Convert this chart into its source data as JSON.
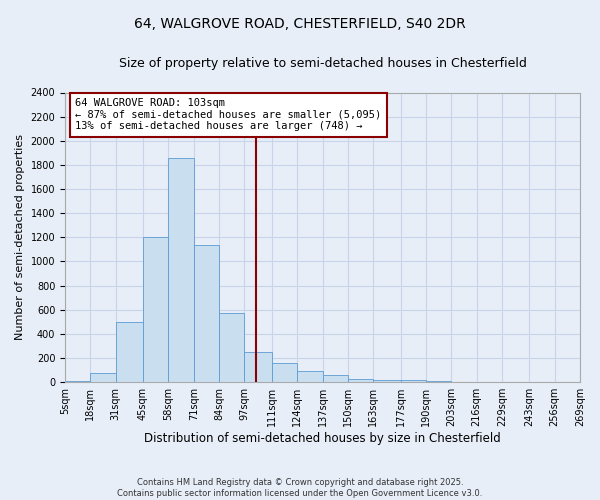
{
  "title_line1": "64, WALGROVE ROAD, CHESTERFIELD, S40 2DR",
  "title_line2": "Size of property relative to semi-detached houses in Chesterfield",
  "xlabel": "Distribution of semi-detached houses by size in Chesterfield",
  "ylabel": "Number of semi-detached properties",
  "footer_line1": "Contains HM Land Registry data © Crown copyright and database right 2025.",
  "footer_line2": "Contains public sector information licensed under the Open Government Licence v3.0.",
  "annotation_line1": "64 WALGROVE ROAD: 103sqm",
  "annotation_line2": "← 87% of semi-detached houses are smaller (5,095)",
  "annotation_line3": "13% of semi-detached houses are larger (748) →",
  "property_size": 103,
  "bin_edges": [
    5,
    18,
    31,
    45,
    58,
    71,
    84,
    97,
    111,
    124,
    137,
    150,
    163,
    177,
    190,
    203,
    216,
    229,
    243,
    256,
    269
  ],
  "bar_heights": [
    10,
    80,
    500,
    1200,
    1860,
    1140,
    570,
    250,
    160,
    90,
    60,
    30,
    20,
    15,
    10,
    5,
    5,
    3,
    2,
    1
  ],
  "bar_color": "#c9dff0",
  "bar_edge_color": "#5b9bd5",
  "vline_color": "#8b0000",
  "vline_x": 103,
  "ylim": [
    0,
    2400
  ],
  "yticks": [
    0,
    200,
    400,
    600,
    800,
    1000,
    1200,
    1400,
    1600,
    1800,
    2000,
    2200,
    2400
  ],
  "grid_color": "#c8d4e8",
  "background_color": "#e8eef8",
  "plot_background": "#e8eef8",
  "annotation_box_color": "#8b0000",
  "title_fontsize": 10,
  "subtitle_fontsize": 9,
  "tick_label_fontsize": 7,
  "ylabel_fontsize": 8,
  "xlabel_fontsize": 8.5,
  "footer_fontsize": 6,
  "annotation_fontsize": 7.5
}
